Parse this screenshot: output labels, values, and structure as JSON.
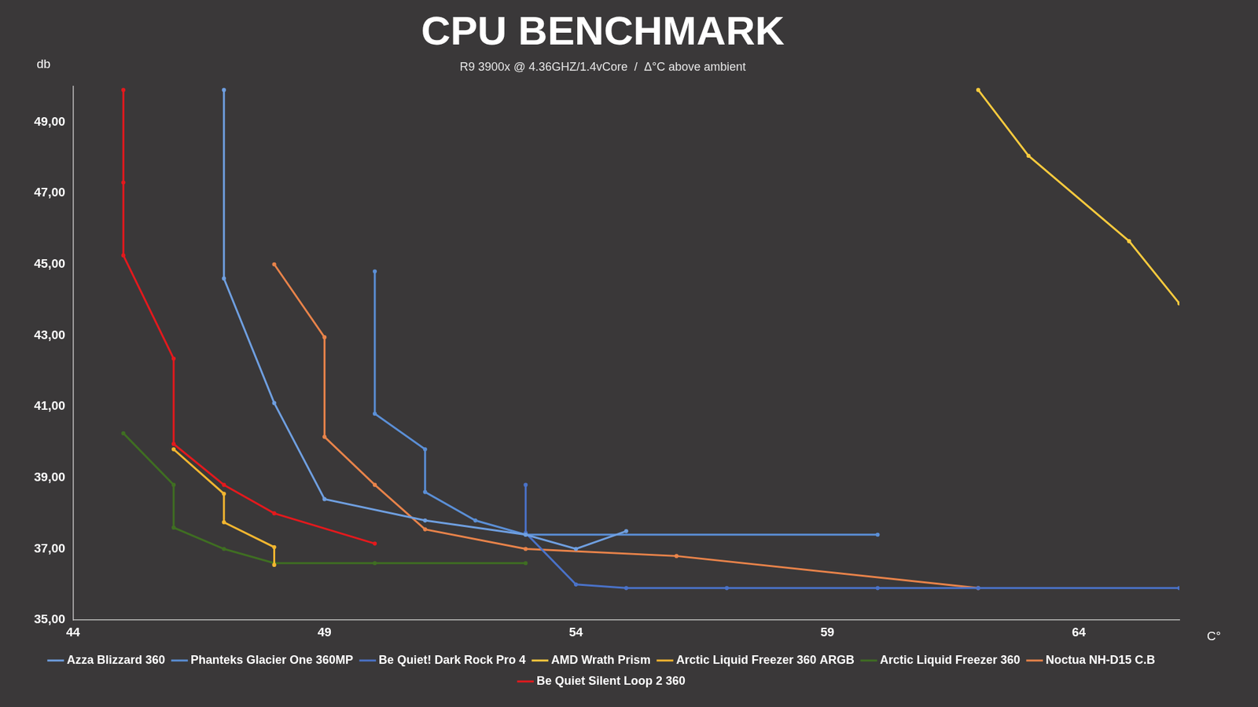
{
  "chart_data": {
    "type": "line",
    "title": "CPU BENCHMARK",
    "subtitle": "R9 3900x @ 4.36GHZ/1.4vCore  /  Δ°C above ambient",
    "x_label": "C°",
    "y_label": "db",
    "xlim": [
      44,
      66
    ],
    "xticks": [
      44,
      49,
      54,
      59,
      64
    ],
    "ylim": [
      35,
      50
    ],
    "yticks": [
      {
        "value": 35,
        "label": "35,00"
      },
      {
        "value": 37,
        "label": "37,00"
      },
      {
        "value": 39,
        "label": "39,00"
      },
      {
        "value": 41,
        "label": "41,00"
      },
      {
        "value": 43,
        "label": "43,00"
      },
      {
        "value": 45,
        "label": "45,00"
      },
      {
        "value": 47,
        "label": "47,00"
      },
      {
        "value": 49,
        "label": "49,00"
      }
    ],
    "grid": false,
    "legend": "bottom",
    "marker": "circle",
    "line_style": "solid",
    "series": [
      {
        "name": "Azza Blizzard 360",
        "color": "#6f9fe0",
        "x": [
          47,
          47,
          48,
          49,
          51,
          53,
          54,
          55
        ],
        "values": [
          49.9,
          44.6,
          41.1,
          38.4,
          37.8,
          37.4,
          37.0,
          37.5
        ]
      },
      {
        "name": "Phanteks Glacier One 360MP",
        "color": "#5b8fd6",
        "x": [
          50,
          50,
          51,
          51,
          52,
          53,
          60
        ],
        "values": [
          44.8,
          40.8,
          39.8,
          38.6,
          37.8,
          37.4,
          37.4
        ]
      },
      {
        "name": "Be Quiet! Dark Rock Pro 4",
        "color": "#4a72c8",
        "x": [
          53,
          53,
          54,
          55,
          57,
          60,
          62,
          66
        ],
        "values": [
          38.8,
          37.45,
          36.0,
          35.9,
          35.9,
          35.9,
          35.9,
          35.9
        ]
      },
      {
        "name": "AMD Wrath Prism",
        "color": "#f7ca3e",
        "x": [
          62,
          63,
          65,
          66
        ],
        "values": [
          49.9,
          48.05,
          45.65,
          43.9
        ]
      },
      {
        "name": "Arctic Liquid Freezer 360 ARGB",
        "color": "#f2b630",
        "x": [
          46,
          47,
          47,
          48,
          48
        ],
        "values": [
          39.8,
          38.55,
          37.75,
          37.05,
          36.55
        ]
      },
      {
        "name": "Arctic Liquid Freezer 360",
        "color": "#3f6e22",
        "x": [
          45,
          46,
          46,
          47,
          48,
          50,
          53
        ],
        "values": [
          40.25,
          38.8,
          37.6,
          37.0,
          36.6,
          36.6,
          36.6
        ]
      },
      {
        "name": "Noctua NH-D15 C.B",
        "color": "#e8834a",
        "x": [
          48,
          49,
          49,
          50,
          51,
          53,
          56,
          62
        ],
        "values": [
          45.0,
          42.95,
          40.15,
          38.8,
          37.55,
          37.0,
          36.8,
          35.9
        ]
      },
      {
        "name": "Be Quiet Silent Loop 2 360",
        "color": "#e3191d",
        "x": [
          45,
          45,
          45,
          46,
          46,
          47,
          48,
          50
        ],
        "values": [
          49.9,
          47.3,
          45.25,
          42.35,
          39.95,
          38.8,
          38.0,
          37.15
        ]
      }
    ]
  }
}
